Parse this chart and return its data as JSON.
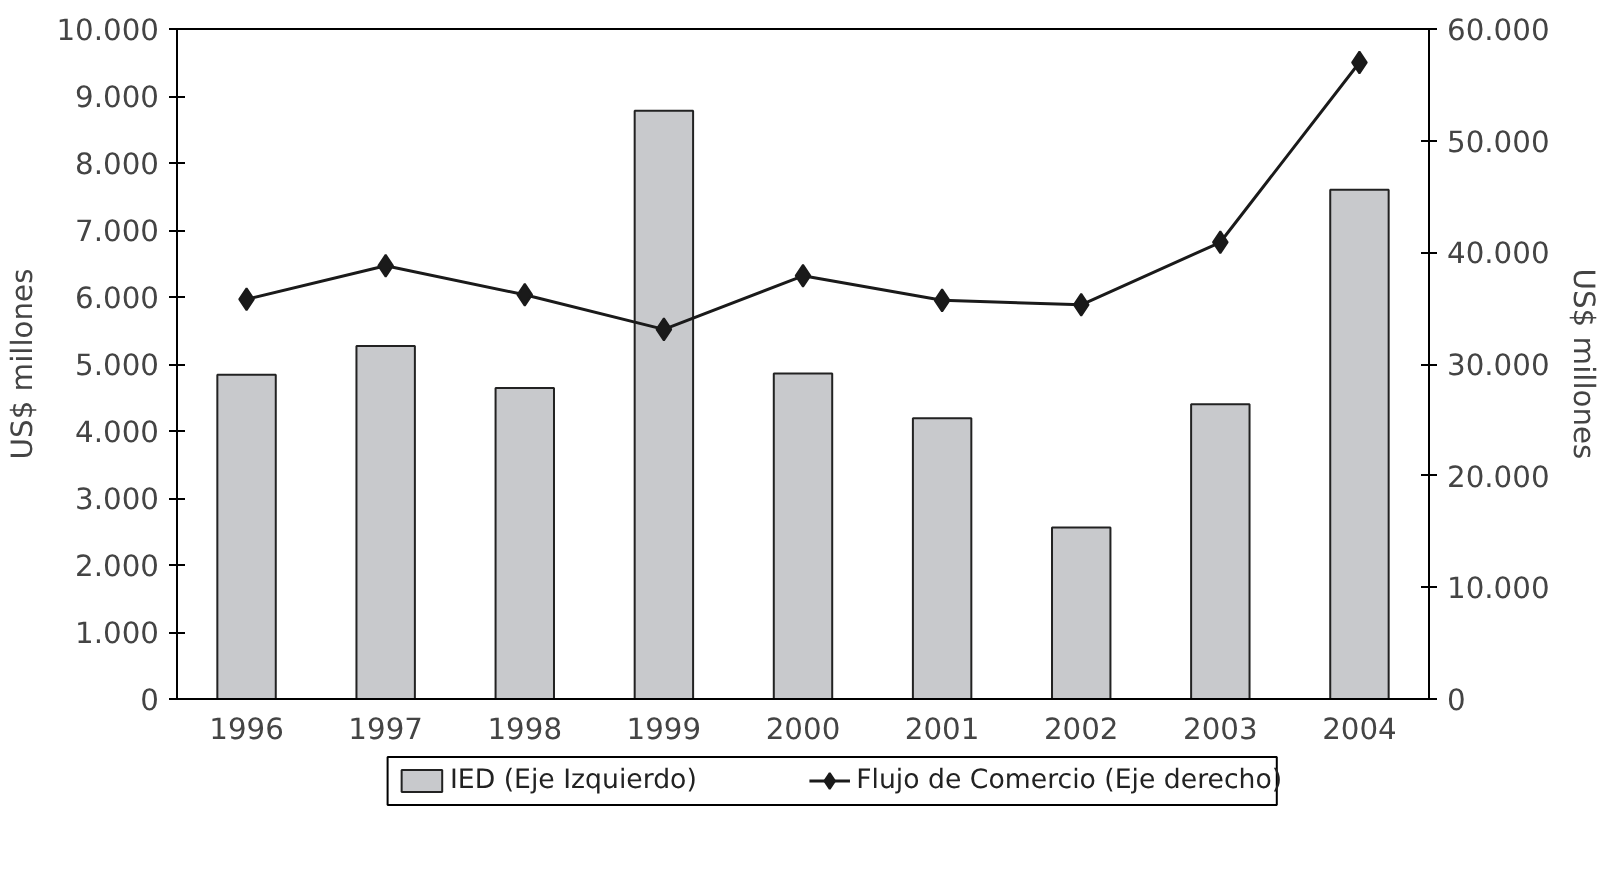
{
  "chart_data": {
    "type": "bar",
    "categories": [
      "1996",
      "1997",
      "1998",
      "1999",
      "2000",
      "2001",
      "2002",
      "2003",
      "2004"
    ],
    "ylabel": "US$ millones",
    "y2label": "US$ millones",
    "series": [
      {
        "name": "IED (Eje Izquierdo)",
        "color": "#c8c9cc",
        "values": [
          4840,
          5270,
          4640,
          8780,
          4860,
          4190,
          2560,
          4400,
          7600
        ]
      },
      {
        "name": "Flujo de Comercio (Eje derecho)",
        "type": "line",
        "axis": "y2",
        "color": "#1a1a1a",
        "marker": "diamond",
        "values": [
          35800,
          38800,
          36200,
          33100,
          37900,
          35700,
          35300,
          40900,
          57000
        ]
      }
    ],
    "ylim": [
      0,
      10000
    ],
    "yticks": [
      0,
      {
        "value": 1000,
        "label": "1.000"
      },
      {
        "value": 2000,
        "label": "2.000"
      },
      {
        "value": 3000,
        "label": "3.000"
      },
      {
        "value": 4000,
        "label": "4.000"
      },
      {
        "value": 5000,
        "label": "5.000"
      },
      {
        "value": 6000,
        "label": "6.000"
      },
      {
        "value": 7000,
        "label": "7.000"
      },
      {
        "value": 8000,
        "label": "8.000"
      },
      {
        "value": 9000,
        "label": "9.000"
      },
      {
        "value": 10000,
        "label": "10.000"
      }
    ],
    "y2lim": [
      0,
      60000
    ],
    "y2ticks": [
      0,
      {
        "value": 10000,
        "label": "10.000"
      },
      {
        "value": 20000,
        "label": "20.000"
      },
      {
        "value": 30000,
        "label": "30.000"
      },
      {
        "value": 40000,
        "label": "40.000"
      },
      {
        "value": 50000,
        "label": "50.000"
      },
      {
        "value": 60000,
        "label": "60.000"
      }
    ],
    "grid": false,
    "legend": "bottom"
  }
}
